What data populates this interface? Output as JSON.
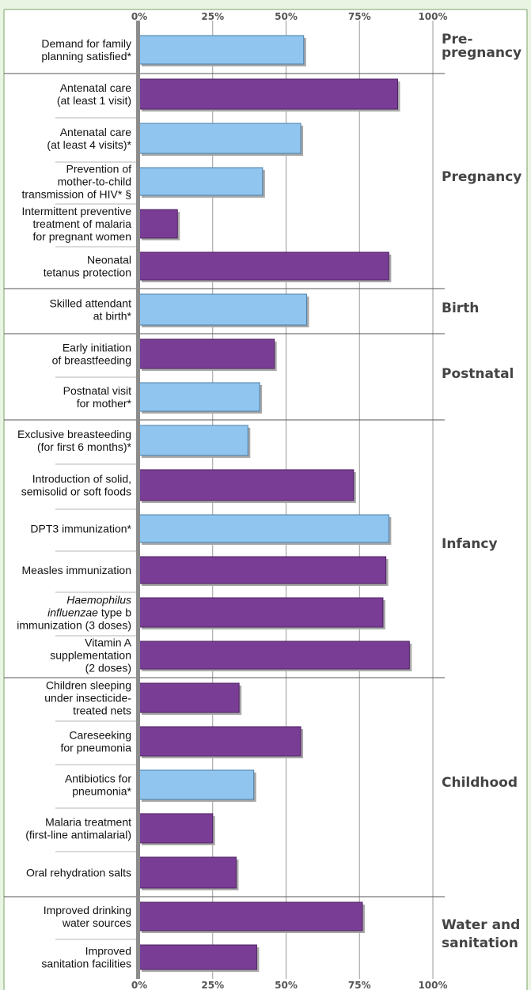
{
  "chart_data": {
    "type": "bar",
    "orientation": "horizontal",
    "xlim": [
      0,
      100
    ],
    "ticks": [
      "0%",
      "25%",
      "50%",
      "75%",
      "100%"
    ],
    "tick_values": [
      0,
      25,
      50,
      75,
      100
    ],
    "colors": {
      "starred": "#8fc5ee",
      "other": "#7a3d96"
    },
    "groups": [
      {
        "name": "Pre-pregnancy",
        "label_lines": [
          "Pre-",
          "pregnancy"
        ],
        "items": [
          {
            "lines": [
              "Demand for family",
              "planning satisfied*"
            ],
            "value": 56,
            "starred": true
          }
        ]
      },
      {
        "name": "Pregnancy",
        "label_lines": [
          "Pregnancy"
        ],
        "items": [
          {
            "lines": [
              "Antenatal care",
              "(at least 1 visit)"
            ],
            "value": 88,
            "starred": false
          },
          {
            "lines": [
              "Antenatal care",
              "(at least 4 visits)*"
            ],
            "value": 55,
            "starred": true
          },
          {
            "lines": [
              "Prevention of",
              "mother-to-child",
              "transmission of HIV* §"
            ],
            "value": 42,
            "starred": true
          },
          {
            "lines": [
              "Intermittent preventive",
              "treatment of malaria",
              "for pregnant women"
            ],
            "value": 13,
            "starred": false
          },
          {
            "lines": [
              "Neonatal",
              "tetanus protection"
            ],
            "value": 85,
            "starred": false
          }
        ]
      },
      {
        "name": "Birth",
        "label_lines": [
          "Birth"
        ],
        "items": [
          {
            "lines": [
              "Skilled attendant",
              "at birth*"
            ],
            "value": 57,
            "starred": true
          }
        ]
      },
      {
        "name": "Postnatal",
        "label_lines": [
          "Postnatal"
        ],
        "items": [
          {
            "lines": [
              "Early initiation",
              "of breastfeeding"
            ],
            "value": 46,
            "starred": false
          },
          {
            "lines": [
              "Postnatal visit",
              "for mother*"
            ],
            "value": 41,
            "starred": true
          }
        ]
      },
      {
        "name": "Infancy",
        "label_lines": [
          "Infancy"
        ],
        "items": [
          {
            "lines": [
              "Exclusive breasteeding",
              "(for first 6 months)*"
            ],
            "value": 37,
            "starred": true
          },
          {
            "lines": [
              "Introduction of solid,",
              "semisolid or soft foods"
            ],
            "value": 73,
            "starred": false
          },
          {
            "lines": [
              "DPT3 immunization*"
            ],
            "value": 85,
            "starred": true
          },
          {
            "lines": [
              "Measles immunization"
            ],
            "value": 84,
            "starred": false
          },
          {
            "lines": [
              "Haemophilus",
              "influenzae type b",
              "immunization (3 doses)"
            ],
            "value": 83,
            "starred": false
          },
          {
            "lines": [
              "Vitamin A",
              "supplementation",
              "(2 doses)"
            ],
            "value": 92,
            "starred": false
          }
        ]
      },
      {
        "name": "Childhood",
        "label_lines": [
          "Childhood"
        ],
        "items": [
          {
            "lines": [
              "Children sleeping",
              "under insecticide-",
              "treated nets"
            ],
            "value": 34,
            "starred": false
          },
          {
            "lines": [
              "Careseeking",
              "for pneumonia"
            ],
            "value": 55,
            "starred": false
          },
          {
            "lines": [
              "Antibiotics for",
              "pneumonia*"
            ],
            "value": 39,
            "starred": true
          },
          {
            "lines": [
              "Malaria treatment",
              "(first-line antimalarial)"
            ],
            "value": 25,
            "starred": false
          },
          {
            "lines": [
              "Oral rehydration salts"
            ],
            "value": 33,
            "starred": false
          }
        ]
      },
      {
        "name": "Water and sanitation",
        "label_lines": [
          "Water and",
          "sanitation"
        ],
        "items": [
          {
            "lines": [
              "Improved drinking",
              "water sources"
            ],
            "value": 76,
            "starred": false
          },
          {
            "lines": [
              "Improved",
              "sanitation facilities"
            ],
            "value": 40,
            "starred": false
          }
        ]
      }
    ]
  }
}
